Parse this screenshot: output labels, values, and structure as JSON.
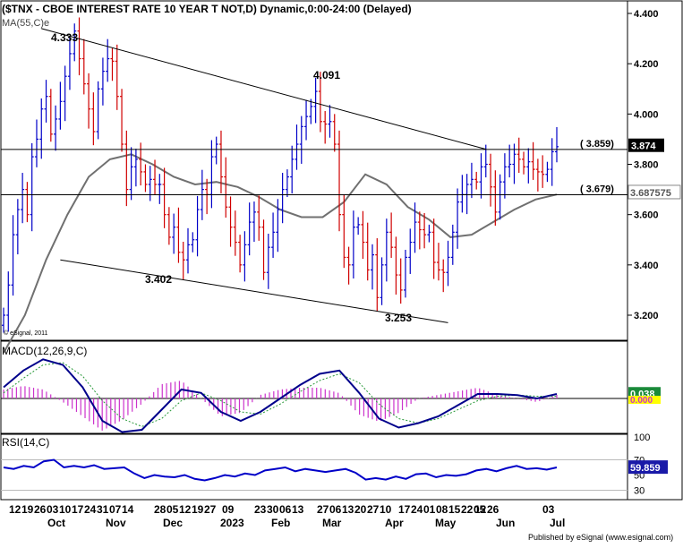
{
  "chart_data": [
    {
      "type": "line",
      "panel": "price",
      "title": "($TNX - CBOE INTEREST RATE 10 YEAR T NOT,D) Dynamic,0:00-24:00 (Delayed)",
      "indicator_label": "MA(55,C)e",
      "copyright": "© eSignal, 2011",
      "ylim": [
        3.1,
        4.43
      ],
      "y_ticks": [
        "4.400",
        "4.200",
        "4.000",
        "3.800",
        "3.600",
        "3.400",
        "3.200"
      ],
      "series": [
        {
          "name": "",
          "values": [
            3.2,
            3.32,
            3.52,
            3.62,
            3.7,
            3.6,
            3.83,
            3.9,
            4.02,
            4.07,
            3.92,
            3.98,
            4.05,
            4.15,
            4.24,
            4.33,
            4.22,
            4.12,
            4.02,
            3.93,
            4.1,
            4.17,
            4.22,
            4.21,
            4.07,
            3.88,
            3.7,
            3.79,
            3.82,
            3.77,
            3.72,
            3.74,
            3.72,
            3.72,
            3.6,
            3.51,
            3.55,
            3.45,
            3.42,
            3.48,
            3.5,
            3.62,
            3.7,
            3.68,
            3.83,
            3.88,
            3.75,
            3.63,
            3.55,
            3.49,
            3.4,
            3.48,
            3.57,
            3.61,
            3.55,
            3.37,
            3.47,
            3.53,
            3.62,
            3.7,
            3.75,
            3.82,
            3.88,
            3.95,
            3.99,
            4.03,
            4.09,
            3.97,
            3.96,
            3.97,
            3.88,
            3.6,
            3.43,
            3.4,
            3.55,
            3.56,
            3.49,
            3.38,
            3.44,
            3.27,
            3.4,
            3.53,
            3.47,
            3.36,
            3.3,
            3.43,
            3.49,
            3.57,
            3.54,
            3.52,
            3.53,
            3.41,
            3.38,
            3.37,
            3.43,
            3.53,
            3.65,
            3.68,
            3.72,
            3.74,
            3.73,
            3.79,
            3.8,
            3.71,
            3.61,
            3.73,
            3.79,
            3.8,
            3.84,
            3.82,
            3.79,
            3.81,
            3.78,
            3.77,
            3.76,
            3.78,
            3.85,
            3.87
          ]
        },
        {
          "name": "MA(55,C)e",
          "values": [
            3.05,
            3.2,
            3.42,
            3.6,
            3.75,
            3.82,
            3.84,
            3.8,
            3.75,
            3.72,
            3.73,
            3.71,
            3.67,
            3.62,
            3.59,
            3.59,
            3.65,
            3.76,
            3.72,
            3.63,
            3.58,
            3.51,
            3.52,
            3.57,
            3.62,
            3.66,
            3.68
          ]
        }
      ],
      "annotations": [
        {
          "text": "4.333",
          "price": 4.333
        },
        {
          "text": "4.091",
          "price": 4.091
        },
        {
          "text": "3.402",
          "price": 3.402
        },
        {
          "text": "3.253",
          "price": 3.253
        }
      ],
      "levels": [
        {
          "label": "( 3.859)",
          "price": 3.859
        },
        {
          "label": "( 3.679)",
          "price": 3.679
        }
      ],
      "last_price_label": "3.874",
      "ma_value_label": "3.687575",
      "trendlines": [
        {
          "name": "upper",
          "from": {
            "bar": 8,
            "price": 4.34
          },
          "to": {
            "bar": 102,
            "price": 3.86
          }
        },
        {
          "name": "lower",
          "from": {
            "bar": 12,
            "price": 3.42
          },
          "to": {
            "bar": 94,
            "price": 3.17
          }
        }
      ]
    },
    {
      "type": "line",
      "panel": "macd",
      "label": "MACD(12,26,9,C)",
      "value_label": "0.038",
      "signal_value_label": "0.000",
      "series": [
        {
          "name": "MACD",
          "values": [
            0.1,
            0.25,
            0.35,
            0.3,
            0.1,
            -0.2,
            -0.3,
            -0.28,
            -0.1,
            0.08,
            0.05,
            -0.12,
            -0.2,
            -0.12,
            0.0,
            0.12,
            0.22,
            0.25,
            0.05,
            -0.18,
            -0.26,
            -0.22,
            -0.16,
            -0.06,
            0.04,
            0.04,
            0.03,
            0.0,
            0.04
          ]
        },
        {
          "name": "Signal",
          "values": [
            0.05,
            0.18,
            0.3,
            0.32,
            0.2,
            -0.02,
            -0.18,
            -0.25,
            -0.18,
            -0.02,
            0.05,
            -0.02,
            -0.12,
            -0.14,
            -0.05,
            0.06,
            0.16,
            0.22,
            0.14,
            -0.05,
            -0.18,
            -0.22,
            -0.18,
            -0.1,
            -0.02,
            0.02,
            0.03,
            0.02,
            0.02
          ]
        }
      ]
    },
    {
      "type": "line",
      "panel": "rsi",
      "label": "RSI(14,C)",
      "value_label": "59.859",
      "y_ticks": [
        "100",
        "70",
        "50",
        "30"
      ],
      "series": [
        {
          "name": "RSI",
          "values": [
            60,
            58,
            62,
            60,
            68,
            70,
            60,
            62,
            60,
            63,
            58,
            59,
            60,
            52,
            46,
            50,
            48,
            47,
            50,
            45,
            43,
            46,
            50,
            48,
            52,
            50,
            56,
            58,
            60,
            55,
            58,
            56,
            54,
            56,
            58,
            53,
            44,
            46,
            44,
            48,
            45,
            51,
            52,
            47,
            50,
            49,
            51,
            56,
            58,
            55,
            59,
            62,
            58,
            59,
            57,
            60
          ]
        }
      ]
    }
  ],
  "x_axis": {
    "day_labels": [
      "12",
      "19",
      "26",
      "03",
      "10",
      "17",
      "24",
      "31",
      "07",
      "14",
      "28",
      "05",
      "12",
      "19",
      "27",
      "09",
      "23",
      "30",
      "06",
      "13",
      "27",
      "06",
      "13",
      "20",
      "27",
      "10",
      "17",
      "24",
      "01",
      "08",
      "15",
      "22",
      "05",
      "12",
      "26",
      "03"
    ],
    "month_labels": [
      "Oct",
      "Nov",
      "Dec",
      "2023",
      "Feb",
      "Mar",
      "Apr",
      "May",
      "Jun",
      "Jul"
    ]
  },
  "footer": {
    "text": "Published by eSignal (www.esignal.com)"
  },
  "colors": {
    "up_bar": "#0000c8",
    "down_bar": "#d00000",
    "ma_line": "#707070",
    "macd_line": "#00008b",
    "signal_line": "#2a9a3a",
    "macd_hist": "#cc33cc",
    "rsi_line": "#0000c8",
    "last_price_bg": "#000000",
    "value_label_green_bg": "#1a8a3a",
    "value_label_blue_bg": "#1a1aa8",
    "value_label_yellow_bg": "#ffff00"
  }
}
